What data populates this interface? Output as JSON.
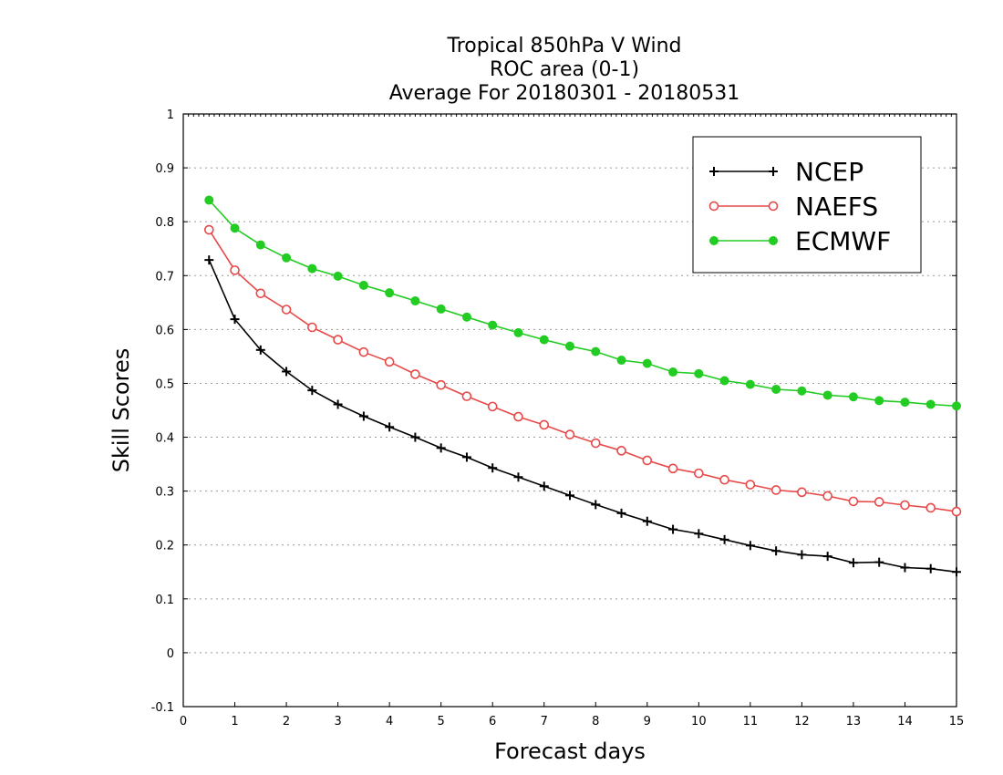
{
  "chart_data": {
    "type": "line",
    "title_lines": [
      "Tropical 850hPa V Wind",
      "ROC area (0-1)",
      "Average For 20180301 - 20180531"
    ],
    "xlabel": "Forecast days",
    "ylabel": "Skill Scores",
    "xlim": [
      0,
      15
    ],
    "ylim": [
      -0.1,
      1
    ],
    "xticks": [
      "0",
      "1",
      "2",
      "3",
      "4",
      "5",
      "6",
      "7",
      "8",
      "9",
      "10",
      "11",
      "12",
      "13",
      "14",
      "15"
    ],
    "yticks": [
      "-0.1",
      "0",
      "0.1",
      "0.2",
      "0.3",
      "0.4",
      "0.5",
      "0.6",
      "0.7",
      "0.8",
      "0.9",
      "1"
    ],
    "grid": true,
    "legend_position": "top-right",
    "x": [
      0.5,
      1,
      1.5,
      2,
      2.5,
      3,
      3.5,
      4,
      4.5,
      5,
      5.5,
      6,
      6.5,
      7,
      7.5,
      8,
      8.5,
      9,
      9.5,
      10,
      10.5,
      11,
      11.5,
      12,
      12.5,
      13,
      13.5,
      14,
      14.5,
      15
    ],
    "series": [
      {
        "name": "NCEP",
        "color": "#000000",
        "marker": "plus",
        "values": [
          0.729,
          0.619,
          0.562,
          0.522,
          0.487,
          0.461,
          0.439,
          0.419,
          0.4,
          0.38,
          0.363,
          0.343,
          0.326,
          0.309,
          0.292,
          0.275,
          0.259,
          0.244,
          0.229,
          0.221,
          0.21,
          0.199,
          0.189,
          0.182,
          0.179,
          0.167,
          0.168,
          0.158,
          0.156,
          0.15
        ]
      },
      {
        "name": "NAEFS",
        "color": "#e84848",
        "marker": "open-circle",
        "values": [
          0.785,
          0.71,
          0.667,
          0.637,
          0.604,
          0.581,
          0.558,
          0.54,
          0.517,
          0.497,
          0.476,
          0.457,
          0.438,
          0.423,
          0.405,
          0.389,
          0.375,
          0.357,
          0.342,
          0.333,
          0.321,
          0.312,
          0.302,
          0.298,
          0.291,
          0.281,
          0.28,
          0.274,
          0.269,
          0.262
        ]
      },
      {
        "name": "ECMWF",
        "color": "#22cc22",
        "marker": "filled-circle",
        "values": [
          0.84,
          0.788,
          0.757,
          0.733,
          0.713,
          0.699,
          0.682,
          0.668,
          0.653,
          0.638,
          0.623,
          0.608,
          0.594,
          0.581,
          0.569,
          0.559,
          0.543,
          0.537,
          0.521,
          0.518,
          0.505,
          0.498,
          0.489,
          0.486,
          0.478,
          0.475,
          0.468,
          0.465,
          0.461,
          0.458
        ]
      }
    ]
  }
}
